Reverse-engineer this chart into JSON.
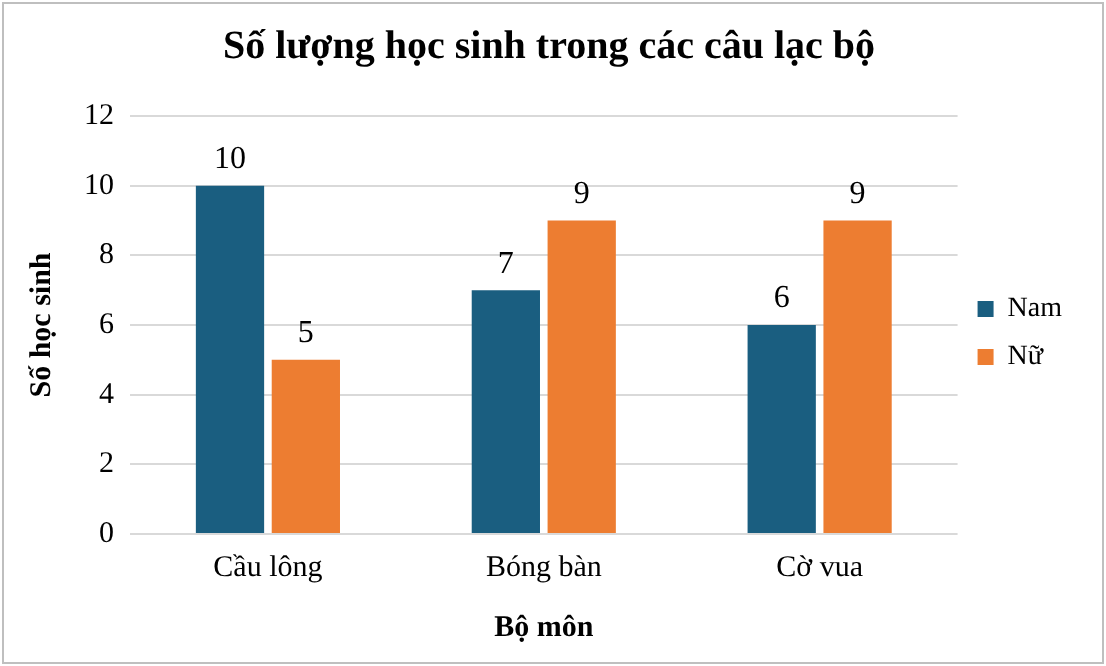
{
  "chart_data": {
    "type": "bar",
    "title": "Số lượng học sinh trong các câu lạc bộ",
    "xlabel": "Bộ môn",
    "ylabel": "Số học sinh",
    "categories": [
      "Cầu lông",
      "Bóng bàn",
      "Cờ vua"
    ],
    "series": [
      {
        "name": "Nam",
        "color": "#1a5e80",
        "values": [
          10,
          7,
          6
        ]
      },
      {
        "name": "Nữ",
        "color": "#ed7d31",
        "values": [
          5,
          9,
          9
        ]
      }
    ],
    "ylim": [
      0,
      12
    ],
    "yticks": [
      0,
      2,
      4,
      6,
      8,
      10,
      12
    ],
    "grid": "y",
    "legend": "right",
    "data_labels": true
  }
}
